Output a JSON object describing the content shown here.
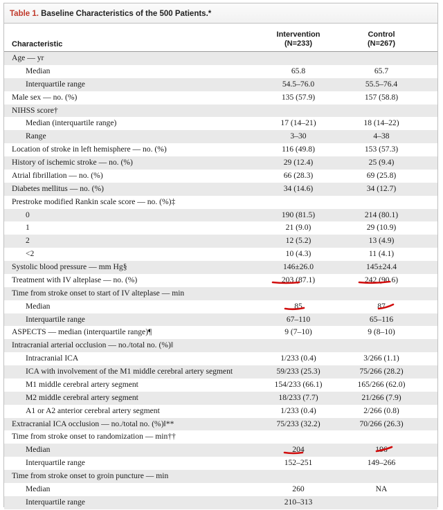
{
  "table": {
    "title_number": "Table 1.",
    "title_text": " Baseline Characteristics of the 500 Patients.*",
    "header": {
      "characteristic": "Characteristic",
      "intervention_name": "Intervention",
      "intervention_n": "(N=233)",
      "control_name": "Control",
      "control_n": "(N=267)"
    },
    "rows": [
      {
        "label": "Age — yr",
        "intervention": "",
        "control": ""
      },
      {
        "label": "Median",
        "intervention": "65.8",
        "control": "65.7"
      },
      {
        "label": "Interquartile range",
        "intervention": "54.5–76.0",
        "control": "55.5–76.4"
      },
      {
        "label": "Male sex — no. (%)",
        "intervention": "135 (57.9)",
        "control": "157 (58.8)"
      },
      {
        "label": "NIHSS score†",
        "intervention": "",
        "control": ""
      },
      {
        "label": "Median (interquartile range)",
        "intervention": "17 (14–21)",
        "control": "18 (14–22)"
      },
      {
        "label": "Range",
        "intervention": "3–30",
        "control": "4–38"
      },
      {
        "label": "Location of stroke in left hemisphere — no. (%)",
        "intervention": "116 (49.8)",
        "control": "153 (57.3)"
      },
      {
        "label": "History of ischemic stroke — no. (%)",
        "intervention": "29 (12.4)",
        "control": "25 (9.4)"
      },
      {
        "label": "Atrial fibrillation — no. (%)",
        "intervention": "66 (28.3)",
        "control": "69 (25.8)"
      },
      {
        "label": "Diabetes mellitus — no. (%)",
        "intervention": "34 (14.6)",
        "control": "34 (12.7)"
      },
      {
        "label": "Prestroke modified Rankin scale score — no. (%)‡",
        "intervention": "",
        "control": ""
      },
      {
        "label": "0",
        "intervention": "190 (81.5)",
        "control": "214 (80.1)"
      },
      {
        "label": "1",
        "intervention": "21 (9.0)",
        "control": "29 (10.9)"
      },
      {
        "label": "2",
        "intervention": "12 (5.2)",
        "control": "13 (4.9)"
      },
      {
        "label": "<2",
        "intervention": "10 (4.3)",
        "control": "11 (4.1)"
      },
      {
        "label": "Systolic blood pressure — mm Hg§",
        "intervention": "146±26.0",
        "control": "145±24.4"
      },
      {
        "label": "Treatment with IV alteplase — no. (%)",
        "intervention": "203 (87.1)",
        "control": "242 (90.6)"
      },
      {
        "label": "Time from stroke onset to start of IV alteplase — min",
        "intervention": "",
        "control": ""
      },
      {
        "label": "Median",
        "intervention": "85",
        "control": "87"
      },
      {
        "label": "Interquartile range",
        "intervention": "67–110",
        "control": "65–116"
      },
      {
        "label": "ASPECTS — median (interquartile range)¶",
        "intervention": "9 (7–10)",
        "control": "9 (8–10)"
      },
      {
        "label": "Intracranial arterial occlusion — no./total no. (%)‖",
        "intervention": "",
        "control": ""
      },
      {
        "label": "Intracranial ICA",
        "intervention": "1/233 (0.4)",
        "control": "3/266 (1.1)"
      },
      {
        "label": "ICA with involvement of the M1 middle cerebral artery segment",
        "intervention": "59/233 (25.3)",
        "control": "75/266 (28.2)"
      },
      {
        "label": "M1 middle cerebral artery segment",
        "intervention": "154/233 (66.1)",
        "control": "165/266 (62.0)"
      },
      {
        "label": "M2 middle cerebral artery segment",
        "intervention": "18/233 (7.7)",
        "control": "21/266 (7.9)"
      },
      {
        "label": "A1 or A2 anterior cerebral artery segment",
        "intervention": "1/233 (0.4)",
        "control": "2/266 (0.8)"
      },
      {
        "label": "Extracranial ICA occlusion — no./total no. (%)‖**",
        "intervention": "75/233 (32.2)",
        "control": "70/266 (26.3)"
      },
      {
        "label": "Time from stroke onset to randomization — min††",
        "intervention": "",
        "control": ""
      },
      {
        "label": "Median",
        "intervention": "204",
        "control": "196"
      },
      {
        "label": "Interquartile range",
        "intervention": "152–251",
        "control": "149–266"
      },
      {
        "label": "Time from stroke onset to groin puncture — min",
        "intervention": "",
        "control": ""
      },
      {
        "label": "Median",
        "intervention": "260",
        "control": "NA"
      },
      {
        "label": "Interquartile range",
        "intervention": "210–313",
        "control": ""
      }
    ]
  },
  "annotation_color": "#d10d0d"
}
